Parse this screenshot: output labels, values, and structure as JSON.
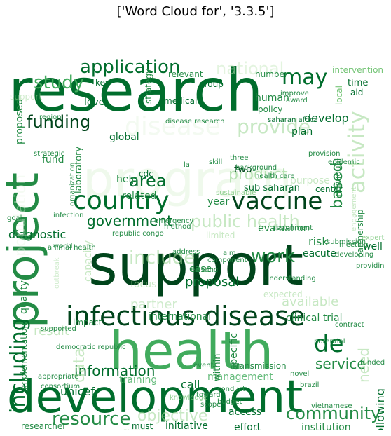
{
  "figure": {
    "title": "['Word Cloud for', '3.3.5']"
  },
  "palette": {
    "c1": "#00441b",
    "c2": "#006d2c",
    "c3": "#238b45",
    "c4": "#41ab5d",
    "c5": "#74c476",
    "c6": "#a1d99b",
    "c7": "#c7e9c0",
    "c8": "#e5f5e0"
  },
  "cloud": {
    "words": [
      {
        "text": "research",
        "color": "c2"
      },
      {
        "text": "support",
        "color": "c1"
      },
      {
        "text": "development",
        "color": "c2"
      },
      {
        "text": "health",
        "color": "c4"
      },
      {
        "text": "infectious disease",
        "color": "c1"
      },
      {
        "text": "project",
        "color": "c3"
      },
      {
        "text": "program",
        "color": "c8"
      },
      {
        "text": "vaccine",
        "color": "c1"
      },
      {
        "text": "country",
        "color": "c2"
      },
      {
        "text": "application",
        "color": "c2"
      },
      {
        "text": "may",
        "color": "c2"
      },
      {
        "text": "funding",
        "color": "c1"
      },
      {
        "text": "study",
        "color": "c4"
      },
      {
        "text": "resource",
        "color": "c3"
      },
      {
        "text": "community",
        "color": "c3"
      },
      {
        "text": "including",
        "color": "c2"
      },
      {
        "text": "provide",
        "color": "c6"
      },
      {
        "text": "disease",
        "color": "c8"
      },
      {
        "text": "activity",
        "color": "c6"
      },
      {
        "text": "de",
        "color": "c2"
      },
      {
        "text": "information",
        "color": "c2"
      },
      {
        "text": "product",
        "color": "c6"
      },
      {
        "text": "public health",
        "color": "c6"
      },
      {
        "text": "national",
        "color": "c7"
      },
      {
        "text": "include",
        "color": "c6"
      },
      {
        "text": "government",
        "color": "c2"
      },
      {
        "text": "area",
        "color": "c2"
      },
      {
        "text": "work",
        "color": "c3"
      },
      {
        "text": "service",
        "color": "c3"
      },
      {
        "text": "objective",
        "color": "c6"
      },
      {
        "text": "partner",
        "color": "c6"
      },
      {
        "text": "data",
        "color": "c6"
      },
      {
        "text": "proposal",
        "color": "c2"
      },
      {
        "text": "available",
        "color": "c6"
      },
      {
        "text": "need",
        "color": "c6"
      },
      {
        "text": "based",
        "color": "c3"
      },
      {
        "text": "diagnostic",
        "color": "c2"
      },
      {
        "text": "initiative",
        "color": "c2"
      },
      {
        "text": "effort",
        "color": "c2"
      },
      {
        "text": "access",
        "color": "c2"
      },
      {
        "text": "following",
        "color": "c2"
      },
      {
        "text": "unicef",
        "color": "c2"
      },
      {
        "text": "global",
        "color": "c2"
      },
      {
        "text": "develop",
        "color": "c2"
      },
      {
        "text": "plan",
        "color": "c2"
      },
      {
        "text": "well",
        "color": "c2"
      },
      {
        "text": "risk",
        "color": "c3"
      },
      {
        "text": "eacute",
        "color": "c2"
      },
      {
        "text": "evaluation",
        "color": "c3"
      },
      {
        "text": "capacity",
        "color": "c6"
      },
      {
        "text": "population",
        "color": "c8"
      },
      {
        "text": "laboratory",
        "color": "c3"
      },
      {
        "text": "quality",
        "color": "c3"
      },
      {
        "text": "proposed",
        "color": "c3"
      },
      {
        "text": "management",
        "color": "c4"
      },
      {
        "text": "call",
        "color": "c2"
      },
      {
        "text": "training",
        "color": "c4"
      },
      {
        "text": "international",
        "color": "c3"
      },
      {
        "text": "focus",
        "color": "c6"
      },
      {
        "text": "case",
        "color": "c3"
      },
      {
        "text": "clinical trial",
        "color": "c3"
      },
      {
        "text": "year",
        "color": "c3"
      },
      {
        "text": "related",
        "color": "c3"
      },
      {
        "text": "sub saharan",
        "color": "c2"
      },
      {
        "text": "center",
        "color": "c2"
      },
      {
        "text": "partnership",
        "color": "c3"
      },
      {
        "text": "purpose",
        "color": "c6"
      },
      {
        "text": "human",
        "color": "c3"
      },
      {
        "text": "policy",
        "color": "c3"
      },
      {
        "text": "strategy",
        "color": "c3"
      },
      {
        "text": "relevant",
        "color": "c3"
      },
      {
        "text": "level",
        "color": "c2"
      },
      {
        "text": "key",
        "color": "c2"
      },
      {
        "text": "time",
        "color": "c2"
      },
      {
        "text": "aid",
        "color": "c2"
      },
      {
        "text": "intervention",
        "color": "c5"
      },
      {
        "text": "local",
        "color": "c5"
      },
      {
        "text": "two",
        "color": "c1"
      },
      {
        "text": "fund",
        "color": "c3"
      },
      {
        "text": "cdc",
        "color": "c2"
      },
      {
        "text": "help",
        "color": "c3"
      },
      {
        "text": "individual",
        "color": "c3"
      },
      {
        "text": "researcher",
        "color": "c3"
      },
      {
        "text": "institution",
        "color": "c3"
      },
      {
        "text": "must",
        "color": "c2"
      },
      {
        "text": "specific",
        "color": "c3"
      },
      {
        "text": "within",
        "color": "c3"
      },
      {
        "text": "result",
        "color": "c6"
      },
      {
        "text": "implementation",
        "color": "c3"
      },
      {
        "text": "medical",
        "color": "c2"
      },
      {
        "text": "group",
        "color": "c2"
      },
      {
        "text": "number",
        "color": "c3"
      },
      {
        "text": "disease research",
        "color": "c3"
      },
      {
        "text": "saharan africa",
        "color": "c2"
      },
      {
        "text": "improve",
        "color": "c3"
      },
      {
        "text": "region",
        "color": "c3"
      },
      {
        "text": "republic congo",
        "color": "c3"
      },
      {
        "text": "democratic republic",
        "color": "c3"
      },
      {
        "text": "animal health",
        "color": "c3"
      },
      {
        "text": "providing",
        "color": "c3"
      },
      {
        "text": "developing",
        "color": "c3"
      },
      {
        "text": "contract",
        "color": "c3"
      },
      {
        "text": "method",
        "color": "c3"
      },
      {
        "text": "limited",
        "color": "c6"
      },
      {
        "text": "assignment",
        "color": "c3"
      },
      {
        "text": "component",
        "color": "c3"
      },
      {
        "text": "understanding",
        "color": "c3"
      },
      {
        "text": "expected",
        "color": "c6"
      },
      {
        "text": "impact",
        "color": "c3"
      },
      {
        "text": "supported",
        "color": "c3"
      },
      {
        "text": "world",
        "color": "c3"
      },
      {
        "text": "transmission",
        "color": "c3"
      },
      {
        "text": "potential",
        "color": "c3"
      },
      {
        "text": "funded",
        "color": "c3"
      },
      {
        "text": "infrastructure",
        "color": "c3"
      },
      {
        "text": "member",
        "color": "c6"
      },
      {
        "text": "budget",
        "color": "c3"
      },
      {
        "text": "knowledge",
        "color": "c5"
      },
      {
        "text": "event",
        "color": "c3"
      },
      {
        "text": "address",
        "color": "c3"
      },
      {
        "text": "sustainable",
        "color": "c5"
      },
      {
        "text": "background",
        "color": "c3"
      },
      {
        "text": "infection",
        "color": "c3"
      },
      {
        "text": "goal",
        "color": "c3"
      },
      {
        "text": "strategic",
        "color": "c3"
      },
      {
        "text": "emergency",
        "color": "c3"
      },
      {
        "text": "novel",
        "color": "c3"
      },
      {
        "text": "conduct",
        "color": "c3"
      },
      {
        "text": "award",
        "color": "c3"
      },
      {
        "text": "organization",
        "color": "c3"
      },
      {
        "text": "la",
        "color": "c3"
      },
      {
        "text": "skill",
        "color": "c3"
      },
      {
        "text": "aim",
        "color": "c3"
      },
      {
        "text": "epidemic",
        "color": "c3"
      },
      {
        "text": "outbreak",
        "color": "c6"
      },
      {
        "text": "engagement",
        "color": "c6"
      },
      {
        "text": "support",
        "color": "c6"
      },
      {
        "text": "existing",
        "color": "c3"
      },
      {
        "text": "meeting",
        "color": "c3"
      },
      {
        "text": "toward",
        "color": "c3"
      },
      {
        "text": "scope",
        "color": "c3"
      },
      {
        "text": "expertise",
        "color": "c5"
      },
      {
        "text": "provision",
        "color": "c3"
      },
      {
        "text": "appropriate",
        "color": "c3"
      },
      {
        "text": "three",
        "color": "c3"
      },
      {
        "text": "consortium",
        "color": "c3"
      },
      {
        "text": "health care",
        "color": "c3"
      },
      {
        "text": "vietnamese",
        "color": "c3"
      },
      {
        "text": "brazil",
        "color": "c3"
      },
      {
        "text": "submission",
        "color": "c3"
      }
    ]
  }
}
